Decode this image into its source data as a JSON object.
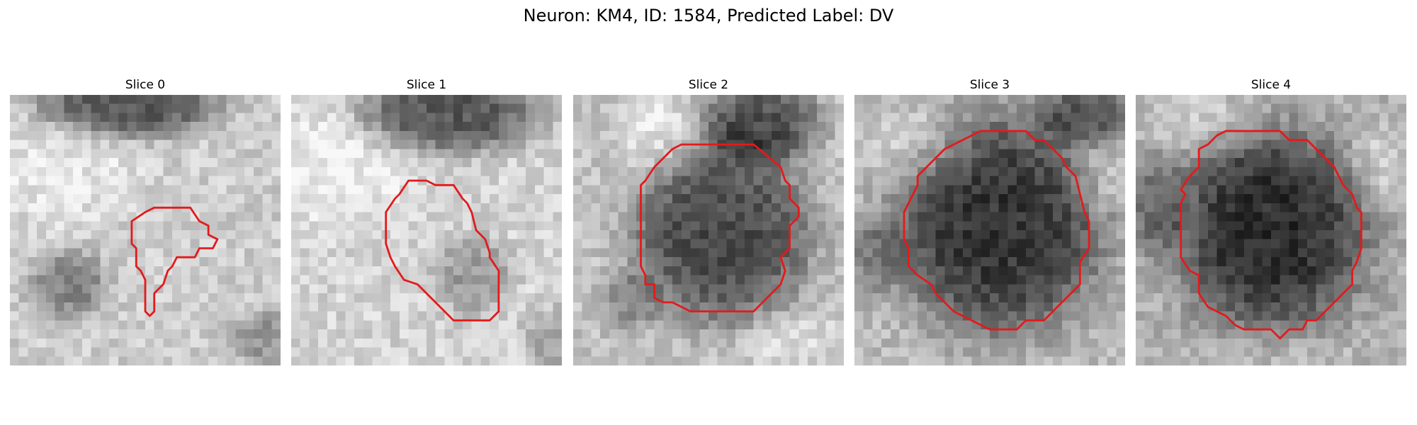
{
  "figure": {
    "title": "Neuron: KM4, ID: 1584, Predicted Label: DV"
  },
  "contour_color": "#e31a1c",
  "panels": [
    {
      "title": "Slice 0",
      "image": {
        "base_gray": 205,
        "dark_blobs": [
          {
            "cx": 13,
            "cy": 1,
            "rx": 9,
            "ry": 3.5,
            "strength": 120
          },
          {
            "cx": 6.5,
            "cy": 21,
            "rx": 4,
            "ry": 3.5,
            "strength": 75
          },
          {
            "cx": 29,
            "cy": 27,
            "rx": 4,
            "ry": 3,
            "strength": 55
          }
        ],
        "light_blobs": [
          {
            "cx": 6,
            "cy": 8,
            "rx": 8,
            "ry": 6,
            "strength": 25
          }
        ],
        "seed": 11
      },
      "contour": [
        [
          17.5,
          12.5
        ],
        [
          20,
          12.5
        ],
        [
          21,
          14
        ],
        [
          22,
          14.5
        ],
        [
          22,
          15.5
        ],
        [
          23,
          16
        ],
        [
          22.5,
          17
        ],
        [
          21,
          17
        ],
        [
          20.5,
          18
        ],
        [
          18.5,
          18
        ],
        [
          18,
          19
        ],
        [
          17.5,
          19.5
        ],
        [
          17,
          21
        ],
        [
          16,
          22
        ],
        [
          16,
          24
        ],
        [
          15.5,
          24.5
        ],
        [
          15,
          24
        ],
        [
          15,
          20.5
        ],
        [
          14.5,
          19.5
        ],
        [
          14,
          19
        ],
        [
          14,
          17
        ],
        [
          13.5,
          16.5
        ],
        [
          13.5,
          14
        ],
        [
          15,
          13
        ],
        [
          16,
          12.5
        ]
      ]
    },
    {
      "title": "Slice 1",
      "image": {
        "base_gray": 212,
        "dark_blobs": [
          {
            "cx": 17.5,
            "cy": 2,
            "rx": 9,
            "ry": 4,
            "strength": 125
          },
          {
            "cx": 20,
            "cy": 20,
            "rx": 4,
            "ry": 4,
            "strength": 55
          },
          {
            "cx": 29,
            "cy": 27,
            "rx": 3,
            "ry": 3,
            "strength": 50
          }
        ],
        "light_blobs": [
          {
            "cx": 5,
            "cy": 8,
            "rx": 8,
            "ry": 6,
            "strength": 25
          }
        ],
        "seed": 23
      },
      "contour": [
        [
          13,
          9.5
        ],
        [
          15,
          9.5
        ],
        [
          16,
          10
        ],
        [
          18,
          10
        ],
        [
          19,
          11.5
        ],
        [
          19.5,
          12
        ],
        [
          20,
          13
        ],
        [
          20.5,
          15
        ],
        [
          21.5,
          16
        ],
        [
          22,
          17.5
        ],
        [
          22,
          18
        ],
        [
          23,
          19.5
        ],
        [
          23,
          24
        ],
        [
          22,
          25
        ],
        [
          18,
          25
        ],
        [
          16,
          23
        ],
        [
          14,
          21
        ],
        [
          12.5,
          20.5
        ],
        [
          11.5,
          19
        ],
        [
          11,
          18
        ],
        [
          10.5,
          16.5
        ],
        [
          10.5,
          15
        ],
        [
          10.5,
          13
        ],
        [
          11.5,
          11.5
        ],
        [
          12,
          11
        ]
      ]
    },
    {
      "title": "Slice 2",
      "image": {
        "base_gray": 195,
        "dark_blobs": [
          {
            "cx": 16.5,
            "cy": 15.5,
            "rx": 9,
            "ry": 9,
            "strength": 120
          },
          {
            "cx": 21,
            "cy": 3,
            "rx": 6,
            "ry": 4,
            "strength": 110
          },
          {
            "cx": 6,
            "cy": 23,
            "rx": 3,
            "ry": 3,
            "strength": 45
          }
        ],
        "light_blobs": [
          {
            "cx": 9,
            "cy": 4,
            "rx": 4,
            "ry": 4,
            "strength": 35
          },
          {
            "cx": 24,
            "cy": 27,
            "rx": 5,
            "ry": 3,
            "strength": 25
          }
        ],
        "seed": 37
      },
      "contour": [
        [
          12,
          5.5
        ],
        [
          20,
          5.5
        ],
        [
          23,
          8
        ],
        [
          23.5,
          9.5
        ],
        [
          24,
          10
        ],
        [
          24,
          11.5
        ],
        [
          25,
          12.5
        ],
        [
          25,
          13.5
        ],
        [
          24,
          14.5
        ],
        [
          24,
          17
        ],
        [
          23,
          18
        ],
        [
          23.5,
          19.5
        ],
        [
          23,
          21
        ],
        [
          22,
          22
        ],
        [
          21,
          23
        ],
        [
          20,
          24
        ],
        [
          19.5,
          24
        ],
        [
          15,
          24
        ],
        [
          13,
          24
        ],
        [
          12,
          23.5
        ],
        [
          11,
          23
        ],
        [
          10,
          23
        ],
        [
          9,
          22.5
        ],
        [
          9,
          21
        ],
        [
          8,
          21
        ],
        [
          8,
          20
        ],
        [
          7.5,
          19
        ],
        [
          7.5,
          17
        ],
        [
          7.5,
          10
        ],
        [
          8,
          9.5
        ],
        [
          9,
          8
        ],
        [
          10,
          7
        ],
        [
          11,
          6
        ]
      ]
    },
    {
      "title": "Slice 3",
      "image": {
        "base_gray": 188,
        "dark_blobs": [
          {
            "cx": 16,
            "cy": 14.5,
            "rx": 10.5,
            "ry": 11,
            "strength": 135
          },
          {
            "cx": 26,
            "cy": 2,
            "rx": 5,
            "ry": 3,
            "strength": 90
          },
          {
            "cx": 2,
            "cy": 18,
            "rx": 3,
            "ry": 4,
            "strength": 50
          }
        ],
        "light_blobs": [
          {
            "cx": 7,
            "cy": 6,
            "rx": 5,
            "ry": 4,
            "strength": 35
          },
          {
            "cx": 27,
            "cy": 10,
            "rx": 3,
            "ry": 3,
            "strength": 35
          }
        ],
        "seed": 53
      },
      "contour": [
        [
          14,
          4
        ],
        [
          19,
          4
        ],
        [
          20,
          5
        ],
        [
          21,
          5
        ],
        [
          22,
          6
        ],
        [
          23,
          7
        ],
        [
          23.5,
          8
        ],
        [
          24.5,
          9
        ],
        [
          25,
          11
        ],
        [
          25.5,
          13
        ],
        [
          26,
          14
        ],
        [
          26,
          17
        ],
        [
          25,
          18.5
        ],
        [
          25,
          21
        ],
        [
          24,
          22
        ],
        [
          23,
          23
        ],
        [
          22,
          24
        ],
        [
          21,
          25
        ],
        [
          19,
          25
        ],
        [
          18,
          26
        ],
        [
          15,
          26
        ],
        [
          14,
          25.5
        ],
        [
          13,
          25
        ],
        [
          11,
          24
        ],
        [
          10,
          23
        ],
        [
          9,
          22
        ],
        [
          8.5,
          21
        ],
        [
          7,
          20
        ],
        [
          6,
          19
        ],
        [
          6,
          17
        ],
        [
          5.5,
          16
        ],
        [
          5.5,
          13
        ],
        [
          6,
          12
        ],
        [
          7,
          10
        ],
        [
          7,
          9
        ],
        [
          8,
          8
        ],
        [
          8.5,
          7.5
        ],
        [
          9,
          7
        ],
        [
          10,
          6
        ],
        [
          12,
          5
        ],
        [
          13,
          4.5
        ]
      ]
    },
    {
      "title": "Slice 4",
      "image": {
        "base_gray": 175,
        "dark_blobs": [
          {
            "cx": 15,
            "cy": 15,
            "rx": 9.5,
            "ry": 10,
            "strength": 130
          },
          {
            "cx": 2,
            "cy": 12,
            "rx": 3,
            "ry": 5,
            "strength": 55
          }
        ],
        "light_blobs": [
          {
            "cx": 7,
            "cy": 3,
            "rx": 6,
            "ry": 3,
            "strength": 35
          },
          {
            "cx": 27,
            "cy": 8,
            "rx": 3,
            "ry": 4,
            "strength": 35
          },
          {
            "cx": 15,
            "cy": 28,
            "rx": 8,
            "ry": 2,
            "strength": 20
          }
        ],
        "seed": 71
      },
      "contour": [
        [
          10,
          4
        ],
        [
          16,
          4
        ],
        [
          17,
          5
        ],
        [
          19,
          5
        ],
        [
          20,
          6
        ],
        [
          21,
          7
        ],
        [
          22,
          8
        ],
        [
          22.5,
          9
        ],
        [
          23,
          10
        ],
        [
          24,
          11
        ],
        [
          24.5,
          12.5
        ],
        [
          25,
          13
        ],
        [
          25,
          17
        ],
        [
          24.5,
          18.5
        ],
        [
          24,
          19.5
        ],
        [
          24,
          21
        ],
        [
          23,
          22
        ],
        [
          22,
          23
        ],
        [
          21,
          24
        ],
        [
          20,
          25
        ],
        [
          19,
          25
        ],
        [
          18.5,
          26
        ],
        [
          17,
          26
        ],
        [
          16,
          27
        ],
        [
          15,
          26
        ],
        [
          12,
          26
        ],
        [
          11,
          25.5
        ],
        [
          10,
          24.5
        ],
        [
          9,
          24
        ],
        [
          8,
          23.5
        ],
        [
          7,
          22
        ],
        [
          7,
          20
        ],
        [
          6,
          19.5
        ],
        [
          5,
          18
        ],
        [
          5,
          16
        ],
        [
          5,
          12
        ],
        [
          5.5,
          11
        ],
        [
          5,
          10.5
        ],
        [
          6,
          9
        ],
        [
          7,
          8
        ],
        [
          7,
          6
        ],
        [
          8,
          5.5
        ],
        [
          9,
          4.5
        ]
      ]
    }
  ]
}
